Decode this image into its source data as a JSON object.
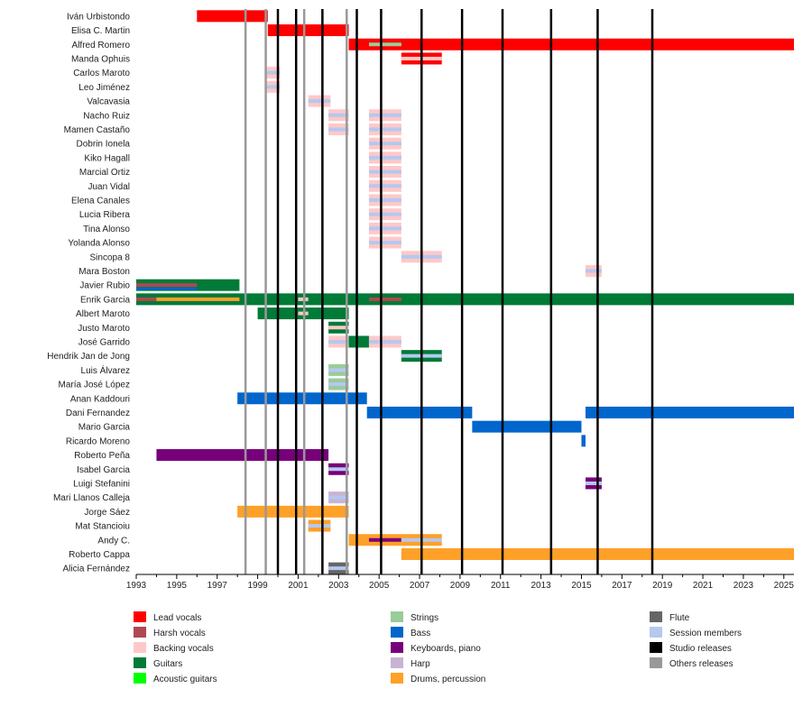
{
  "chart_data": {
    "type": "timeline",
    "x_range": [
      1993,
      2025.5
    ],
    "x_ticks": [
      1993,
      1995,
      1997,
      1999,
      2001,
      2003,
      2005,
      2007,
      2009,
      2011,
      2013,
      2015,
      2017,
      2019,
      2021,
      2023,
      2025
    ],
    "colors": {
      "lead_vocals": "#ff0000",
      "harsh_vocals": "#b04850",
      "backing_vocals": "#ffc8c8",
      "guitars": "#007a37",
      "acoustic_guitars": "#00ff00",
      "strings": "#99cc99",
      "bass": "#0066cc",
      "keyboards": "#77007a",
      "harp": "#c8b4d2",
      "drums": "#ffa028",
      "flute": "#666666",
      "session": "#b4c8f0",
      "studio": "#000000",
      "others": "#999999"
    },
    "members": [
      {
        "name": "Iván Urbistondo",
        "bars": [
          {
            "r": "lead_vocals",
            "s": 1996,
            "e": 1999.5
          }
        ]
      },
      {
        "name": "Elisa C. Martin",
        "bars": [
          {
            "r": "lead_vocals",
            "s": 1999.5,
            "e": 2003.5
          }
        ]
      },
      {
        "name": "Alfred Romero",
        "bars": [
          {
            "r": "lead_vocals",
            "s": 2003.5,
            "e": 2025.5
          },
          {
            "r": "strings",
            "s": 2004.5,
            "e": 2006.1,
            "in": 1
          }
        ]
      },
      {
        "name": "Manda Ophuis",
        "bars": [
          {
            "r": "lead_vocals",
            "s": 2006.1,
            "e": 2008.1
          },
          {
            "r": "backing_vocals",
            "s": 2006.1,
            "e": 2008.1,
            "in": 1
          }
        ]
      },
      {
        "name": "Carlos Maroto",
        "bars": [
          {
            "r": "backing_vocals",
            "s": 1999.4,
            "e": 2000.1
          },
          {
            "r": "session",
            "s": 1999.4,
            "e": 2000.1,
            "in": 1
          }
        ]
      },
      {
        "name": "Leo Jiménez",
        "bars": [
          {
            "r": "backing_vocals",
            "s": 1999.4,
            "e": 2000.1
          },
          {
            "r": "session",
            "s": 1999.4,
            "e": 2000.1,
            "in": 1
          }
        ]
      },
      {
        "name": "Valcavasia",
        "bars": [
          {
            "r": "backing_vocals",
            "s": 2001.5,
            "e": 2002.6
          },
          {
            "r": "session",
            "s": 2001.5,
            "e": 2002.6,
            "in": 1
          }
        ]
      },
      {
        "name": "Nacho Ruiz",
        "bars": [
          {
            "r": "backing_vocals",
            "s": 2002.5,
            "e": 2003.5
          },
          {
            "r": "session",
            "s": 2002.5,
            "e": 2003.5,
            "in": 1
          },
          {
            "r": "backing_vocals",
            "s": 2004.5,
            "e": 2006.1
          },
          {
            "r": "session",
            "s": 2004.5,
            "e": 2006.1,
            "in": 1
          }
        ]
      },
      {
        "name": "Mamen Castaño",
        "bars": [
          {
            "r": "backing_vocals",
            "s": 2002.5,
            "e": 2003.5
          },
          {
            "r": "session",
            "s": 2002.5,
            "e": 2003.5,
            "in": 1
          },
          {
            "r": "backing_vocals",
            "s": 2004.5,
            "e": 2006.1
          },
          {
            "r": "session",
            "s": 2004.5,
            "e": 2006.1,
            "in": 1
          }
        ]
      },
      {
        "name": "Dobrin Ionela",
        "bars": [
          {
            "r": "backing_vocals",
            "s": 2004.5,
            "e": 2006.1
          },
          {
            "r": "session",
            "s": 2004.5,
            "e": 2006.1,
            "in": 1
          }
        ]
      },
      {
        "name": "Kiko Hagall",
        "bars": [
          {
            "r": "backing_vocals",
            "s": 2004.5,
            "e": 2006.1
          },
          {
            "r": "session",
            "s": 2004.5,
            "e": 2006.1,
            "in": 1
          }
        ]
      },
      {
        "name": "Marcial Ortiz",
        "bars": [
          {
            "r": "backing_vocals",
            "s": 2004.5,
            "e": 2006.1
          },
          {
            "r": "session",
            "s": 2004.5,
            "e": 2006.1,
            "in": 1
          }
        ]
      },
      {
        "name": "Juan Vidal",
        "bars": [
          {
            "r": "backing_vocals",
            "s": 2004.5,
            "e": 2006.1
          },
          {
            "r": "session",
            "s": 2004.5,
            "e": 2006.1,
            "in": 1
          }
        ]
      },
      {
        "name": "Elena Canales",
        "bars": [
          {
            "r": "backing_vocals",
            "s": 2004.5,
            "e": 2006.1
          },
          {
            "r": "session",
            "s": 2004.5,
            "e": 2006.1,
            "in": 1
          }
        ]
      },
      {
        "name": "Lucia Ribera",
        "bars": [
          {
            "r": "backing_vocals",
            "s": 2004.5,
            "e": 2006.1
          },
          {
            "r": "session",
            "s": 2004.5,
            "e": 2006.1,
            "in": 1
          }
        ]
      },
      {
        "name": "Tina Alonso",
        "bars": [
          {
            "r": "backing_vocals",
            "s": 2004.5,
            "e": 2006.1
          },
          {
            "r": "session",
            "s": 2004.5,
            "e": 2006.1,
            "in": 1
          }
        ]
      },
      {
        "name": "Yolanda Alonso",
        "bars": [
          {
            "r": "backing_vocals",
            "s": 2004.5,
            "e": 2006.1
          },
          {
            "r": "session",
            "s": 2004.5,
            "e": 2006.1,
            "in": 1
          }
        ]
      },
      {
        "name": "Sincopa 8",
        "bars": [
          {
            "r": "backing_vocals",
            "s": 2006.1,
            "e": 2008.1
          },
          {
            "r": "session",
            "s": 2006.1,
            "e": 2008.1,
            "in": 1
          }
        ]
      },
      {
        "name": "Mara Boston",
        "bars": [
          {
            "r": "backing_vocals",
            "s": 2015.2,
            "e": 2016.0
          },
          {
            "r": "session",
            "s": 2015.2,
            "e": 2016.0,
            "in": 1
          }
        ]
      },
      {
        "name": "Javier Rubio",
        "bars": [
          {
            "r": "guitars",
            "s": 1993,
            "e": 1998.1
          },
          {
            "r": "harsh_vocals",
            "s": 1993,
            "e": 1996.0,
            "in": 1
          },
          {
            "r": "bass",
            "s": 1993,
            "e": 1996.0,
            "in": 2
          }
        ]
      },
      {
        "name": "Enrik Garcia",
        "bars": [
          {
            "r": "guitars",
            "s": 1993,
            "e": 2025.5
          },
          {
            "r": "harsh_vocals",
            "s": 1993,
            "e": 1994.0,
            "in": 1
          },
          {
            "r": "drums",
            "s": 1994.0,
            "e": 1998.1,
            "in": 1
          },
          {
            "r": "backing_vocals",
            "s": 2001.0,
            "e": 2001.5,
            "in": 1
          },
          {
            "r": "harsh_vocals",
            "s": 2004.5,
            "e": 2006.1,
            "in": 1
          }
        ]
      },
      {
        "name": "Albert Maroto",
        "bars": [
          {
            "r": "guitars",
            "s": 1999.0,
            "e": 2003.5
          },
          {
            "r": "backing_vocals",
            "s": 2001.0,
            "e": 2001.5,
            "in": 1
          }
        ]
      },
      {
        "name": "Justo Maroto",
        "bars": [
          {
            "r": "guitars",
            "s": 2002.5,
            "e": 2003.5
          },
          {
            "r": "backing_vocals",
            "s": 2002.5,
            "e": 2003.5,
            "in": 1
          }
        ]
      },
      {
        "name": "José Garrido",
        "bars": [
          {
            "r": "backing_vocals",
            "s": 2002.5,
            "e": 2003.5
          },
          {
            "r": "session",
            "s": 2002.5,
            "e": 2003.5,
            "in": 1
          },
          {
            "r": "guitars",
            "s": 2003.5,
            "e": 2004.5
          },
          {
            "r": "backing_vocals",
            "s": 2004.5,
            "e": 2006.1
          },
          {
            "r": "session",
            "s": 2004.5,
            "e": 2006.1,
            "in": 1
          }
        ]
      },
      {
        "name": "Hendrik Jan de Jong",
        "bars": [
          {
            "r": "guitars",
            "s": 2006.1,
            "e": 2008.1
          },
          {
            "r": "session",
            "s": 2006.1,
            "e": 2008.1,
            "in": 1
          }
        ]
      },
      {
        "name": "Luis Álvarez",
        "bars": [
          {
            "r": "strings",
            "s": 2002.5,
            "e": 2003.5
          },
          {
            "r": "session",
            "s": 2002.5,
            "e": 2003.5,
            "in": 1
          }
        ]
      },
      {
        "name": "María José López",
        "bars": [
          {
            "r": "strings",
            "s": 2002.5,
            "e": 2003.5
          },
          {
            "r": "session",
            "s": 2002.5,
            "e": 2003.5,
            "in": 1
          }
        ]
      },
      {
        "name": "Anan Kaddouri",
        "bars": [
          {
            "r": "bass",
            "s": 1998.0,
            "e": 2004.4
          }
        ]
      },
      {
        "name": "Dani Fernandez",
        "bars": [
          {
            "r": "bass",
            "s": 2004.4,
            "e": 2009.6
          },
          {
            "r": "bass",
            "s": 2015.2,
            "e": 2025.5
          }
        ]
      },
      {
        "name": "Mario Garcia",
        "bars": [
          {
            "r": "bass",
            "s": 2009.6,
            "e": 2015.0
          }
        ]
      },
      {
        "name": "Ricardo Moreno",
        "bars": [
          {
            "r": "bass",
            "s": 2015.0,
            "e": 2015.2
          }
        ]
      },
      {
        "name": "Roberto Peña",
        "bars": [
          {
            "r": "keyboards",
            "s": 1994.0,
            "e": 2002.5
          }
        ]
      },
      {
        "name": "Isabel Garcia",
        "bars": [
          {
            "r": "keyboards",
            "s": 2002.5,
            "e": 2003.5
          },
          {
            "r": "session",
            "s": 2002.5,
            "e": 2003.5,
            "in": 1
          }
        ]
      },
      {
        "name": "Luigi Stefanini",
        "bars": [
          {
            "r": "keyboards",
            "s": 2015.2,
            "e": 2016.0
          },
          {
            "r": "session",
            "s": 2015.2,
            "e": 2016.0,
            "in": 1
          }
        ]
      },
      {
        "name": "Mari Llanos Calleja",
        "bars": [
          {
            "r": "harp",
            "s": 2002.5,
            "e": 2003.5
          },
          {
            "r": "session",
            "s": 2002.5,
            "e": 2003.5,
            "in": 1
          }
        ]
      },
      {
        "name": "Jorge Sáez",
        "bars": [
          {
            "r": "drums",
            "s": 1998.0,
            "e": 2003.5
          }
        ]
      },
      {
        "name": "Mat Stancioiu",
        "bars": [
          {
            "r": "drums",
            "s": 2001.5,
            "e": 2002.6
          },
          {
            "r": "session",
            "s": 2001.5,
            "e": 2002.6,
            "in": 1
          }
        ]
      },
      {
        "name": "Andy C.",
        "bars": [
          {
            "r": "drums",
            "s": 2003.5,
            "e": 2008.1
          },
          {
            "r": "keyboards",
            "s": 2004.5,
            "e": 2006.1,
            "in": 1
          },
          {
            "r": "session",
            "s": 2006.1,
            "e": 2008.1,
            "in": 1
          }
        ]
      },
      {
        "name": "Roberto Cappa",
        "bars": [
          {
            "r": "drums",
            "s": 2006.1,
            "e": 2025.5
          }
        ]
      },
      {
        "name": "Alicia Fernández",
        "bars": [
          {
            "r": "flute",
            "s": 2002.5,
            "e": 2003.5
          },
          {
            "r": "session",
            "s": 2002.5,
            "e": 2003.5,
            "in": 1
          }
        ]
      }
    ],
    "studio_releases": [
      2000.0,
      2000.9,
      2002.2,
      2003.9,
      2005.1,
      2007.1,
      2009.1,
      2011.1,
      2013.5,
      2015.8,
      2018.5
    ],
    "other_releases": [
      1998.4,
      1999.4,
      2001.3,
      2003.4
    ],
    "legend": [
      {
        "label": "Lead vocals",
        "r": "lead_vocals",
        "col": 0
      },
      {
        "label": "Harsh vocals",
        "r": "harsh_vocals",
        "col": 0
      },
      {
        "label": "Backing vocals",
        "r": "backing_vocals",
        "col": 0
      },
      {
        "label": "Guitars",
        "r": "guitars",
        "col": 0
      },
      {
        "label": "Acoustic guitars",
        "r": "acoustic_guitars",
        "col": 0
      },
      {
        "label": "Strings",
        "r": "strings",
        "col": 1
      },
      {
        "label": "Bass",
        "r": "bass",
        "col": 1
      },
      {
        "label": "Keyboards, piano",
        "r": "keyboards",
        "col": 1
      },
      {
        "label": "Harp",
        "r": "harp",
        "col": 1
      },
      {
        "label": "Drums, percussion",
        "r": "drums",
        "col": 1
      },
      {
        "label": "Flute",
        "r": "flute",
        "col": 2
      },
      {
        "label": "Session members",
        "r": "session",
        "col": 2
      },
      {
        "label": "Studio releases",
        "r": "studio",
        "col": 2
      },
      {
        "label": "Others releases",
        "r": "others",
        "col": 2
      }
    ]
  }
}
